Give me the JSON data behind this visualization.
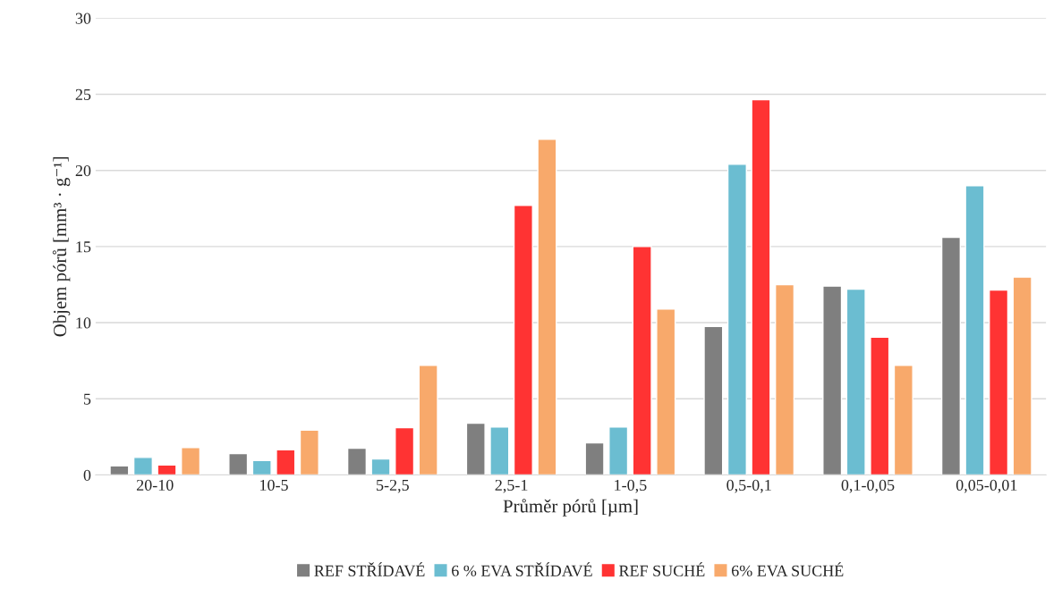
{
  "chart_data": {
    "type": "bar",
    "xlabel": "Průměr pórů [µm]",
    "ylabel": "Objem pórů [mm³ · g⁻¹]",
    "categories": [
      "20-10",
      "10-5",
      "5-2,5",
      "2,5-1",
      "1-0,5",
      "0,5-0,1",
      "0,1-0,05",
      "0,05-0,01"
    ],
    "series": [
      {
        "name": "REF STŘÍDAVÉ",
        "color": "#7f7f7f",
        "values": [
          0.6,
          1.4,
          1.75,
          3.4,
          2.1,
          9.75,
          12.4,
          15.6
        ]
      },
      {
        "name": "6 % EVA STŘÍDAVÉ",
        "color": "#6bbdd1",
        "values": [
          1.15,
          0.95,
          1.05,
          3.15,
          3.15,
          20.4,
          12.2,
          19.0
        ]
      },
      {
        "name": "REF SUCHÉ",
        "color": "#ff3333",
        "values": [
          0.65,
          1.65,
          3.1,
          17.7,
          15.0,
          24.65,
          9.05,
          12.15
        ]
      },
      {
        "name": "6% EVA SUCHÉ",
        "color": "#f8a96b",
        "values": [
          1.8,
          2.95,
          7.2,
          22.05,
          10.9,
          12.5,
          7.2,
          13.0
        ]
      }
    ],
    "ylim": [
      0,
      30
    ],
    "yticks": [
      0,
      5,
      10,
      15,
      20,
      25,
      30
    ],
    "grid": "y",
    "legend": "bottom"
  }
}
